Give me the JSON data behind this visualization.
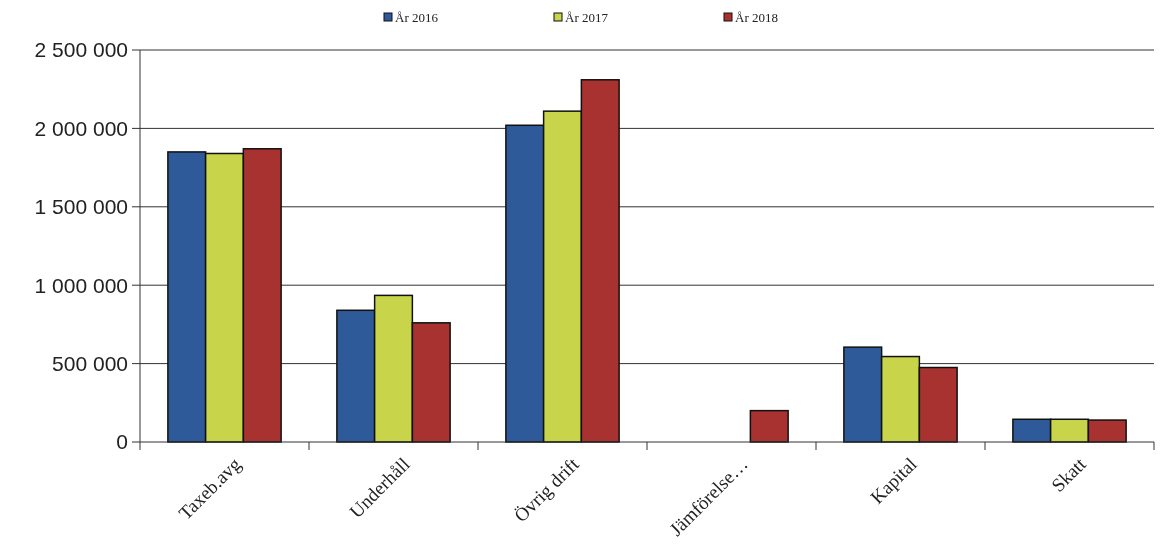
{
  "chart_data": {
    "type": "bar",
    "categories": [
      "Taxeb.avg",
      "Underhåll",
      "Övrig drift",
      "Jämförelse…",
      "Kapital",
      "Skatt"
    ],
    "series": [
      {
        "name": "År 2016",
        "color": "#2e5a9a",
        "values": [
          1850000,
          840000,
          2020000,
          null,
          605000,
          145000
        ]
      },
      {
        "name": "År 2017",
        "color": "#c8d44a",
        "values": [
          1840000,
          935000,
          2110000,
          null,
          545000,
          145000
        ]
      },
      {
        "name": "År 2018",
        "color": "#a83230",
        "values": [
          1870000,
          760000,
          2310000,
          200000,
          475000,
          140000
        ]
      }
    ],
    "ylim": [
      0,
      2500000
    ],
    "yticks": [
      {
        "value": 0,
        "label": "0"
      },
      {
        "value": 500000,
        "label": "500 000"
      },
      {
        "value": 1000000,
        "label": "1 000 000"
      },
      {
        "value": 1500000,
        "label": "1 500 000"
      },
      {
        "value": 2000000,
        "label": "2 000 000"
      },
      {
        "value": 2500000,
        "label": "2 500 000"
      }
    ],
    "grid": "y",
    "legend": "top"
  }
}
